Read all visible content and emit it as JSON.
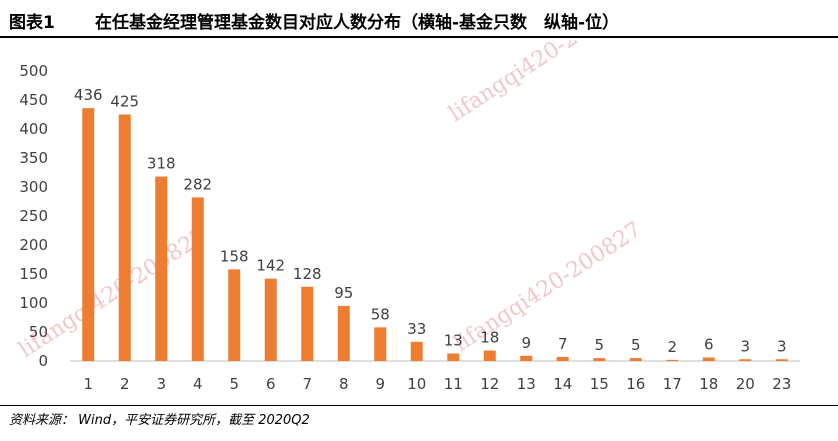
{
  "header": {
    "figure_label": "图表1",
    "title": "在任基金经理管理基金数目对应人数分布（横轴-基金只数　纵轴-位）"
  },
  "footer": {
    "source": "资料来源： Wind，平安证券研究所，截至 2020Q2"
  },
  "watermark": {
    "text": "lifangqi420-200827"
  },
  "colors": {
    "bar": "#ED7D31",
    "axis": "#BFBFBF",
    "watermark": "#F2C7C7"
  },
  "chart_data": {
    "type": "bar",
    "categories": [
      "1",
      "2",
      "3",
      "4",
      "5",
      "6",
      "7",
      "8",
      "9",
      "10",
      "11",
      "12",
      "13",
      "14",
      "15",
      "16",
      "17",
      "18",
      "20",
      "23"
    ],
    "values": [
      436,
      425,
      318,
      282,
      158,
      142,
      128,
      95,
      58,
      33,
      13,
      18,
      9,
      7,
      5,
      5,
      2,
      6,
      3,
      3
    ],
    "ylim": [
      0,
      500
    ],
    "yticks": [
      0,
      50,
      100,
      150,
      200,
      250,
      300,
      350,
      400,
      450,
      500
    ],
    "grid": false,
    "legend": "none",
    "data_labels": true
  }
}
